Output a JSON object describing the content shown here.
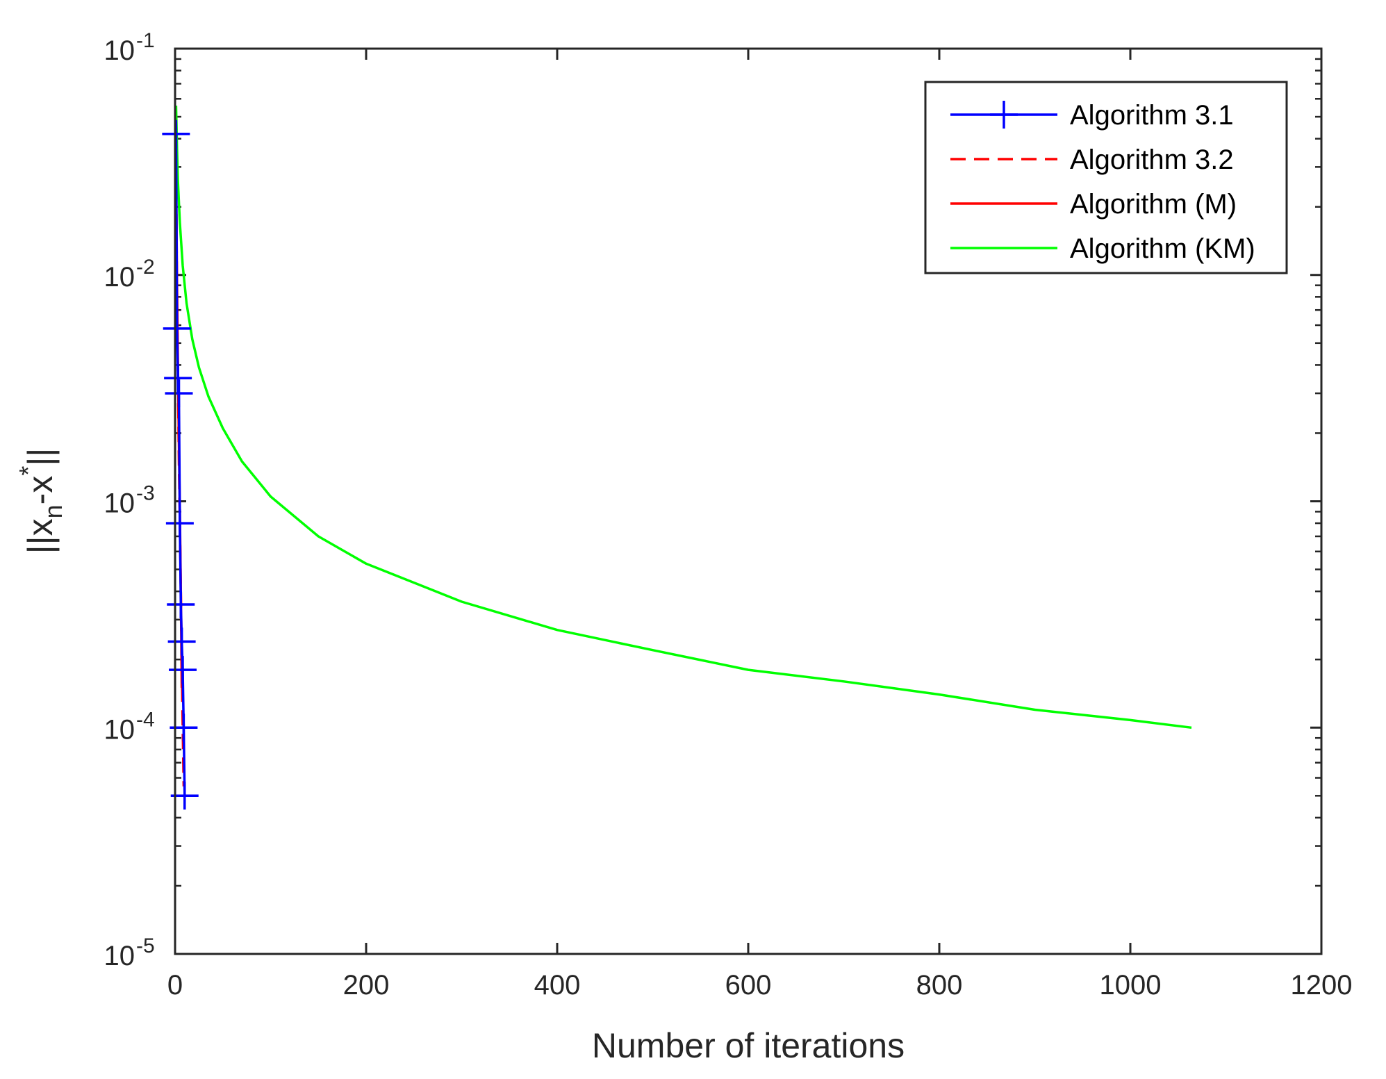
{
  "chart_data": {
    "type": "line",
    "xlabel": "Number of iterations",
    "ylabel_main": "||x",
    "ylabel_sub": "n",
    "ylabel_rest": "-x",
    "ylabel_sup": "*",
    "ylabel_end": "||",
    "xlim": [
      0,
      1200
    ],
    "ylim": [
      1e-05,
      0.1
    ],
    "yscale": "log",
    "grid": false,
    "legend_position": "top-right",
    "x_ticks": [
      {
        "value": 0,
        "label": "0"
      },
      {
        "value": 200,
        "label": "200"
      },
      {
        "value": 400,
        "label": "400"
      },
      {
        "value": 600,
        "label": "600"
      },
      {
        "value": 800,
        "label": "800"
      },
      {
        "value": 1000,
        "label": "1000"
      },
      {
        "value": 1200,
        "label": "1200"
      }
    ],
    "y_ticks": [
      {
        "value": 1e-05,
        "base": "10",
        "exp": "-5"
      },
      {
        "value": 0.0001,
        "base": "10",
        "exp": "-4"
      },
      {
        "value": 0.001,
        "base": "10",
        "exp": "-3"
      },
      {
        "value": 0.01,
        "base": "10",
        "exp": "-2"
      },
      {
        "value": 0.1,
        "base": "10",
        "exp": "-1"
      }
    ],
    "series": [
      {
        "name": "Algorithm 3.1",
        "color": "#0000ff",
        "style": "solid",
        "marker": "plus",
        "x": [
          1,
          2,
          3,
          4,
          5,
          6,
          7,
          8,
          9,
          10
        ],
        "y": [
          0.042,
          0.0058,
          0.0035,
          0.003,
          0.0008,
          0.00035,
          0.00024,
          0.00018,
          0.0001,
          5e-05
        ]
      },
      {
        "name": "Algorithm 3.2",
        "color": "#ff0000",
        "style": "dashed",
        "marker": "none",
        "x": [
          1,
          2,
          3,
          4,
          5,
          6,
          7,
          8,
          9
        ],
        "y": [
          0.03,
          0.008,
          0.0035,
          0.0015,
          0.0008,
          0.0004,
          0.0002,
          0.0001,
          5.5e-05
        ]
      },
      {
        "name": "Algorithm (M)",
        "color": "#ff0000",
        "style": "solid",
        "marker": "none",
        "x": [
          1,
          2,
          3,
          4,
          5,
          6,
          7
        ],
        "y": [
          0.028,
          0.009,
          0.004,
          0.0018,
          0.0009,
          0.0004,
          0.00015
        ]
      },
      {
        "name": "Algorithm (KM)",
        "color": "#00ff00",
        "style": "solid",
        "marker": "none",
        "x": [
          1,
          2,
          3,
          5,
          8,
          12,
          18,
          25,
          35,
          50,
          70,
          100,
          150,
          200,
          300,
          400,
          500,
          600,
          700,
          800,
          900,
          1000,
          1064
        ],
        "y": [
          0.056,
          0.036,
          0.026,
          0.017,
          0.011,
          0.0075,
          0.0052,
          0.0039,
          0.0029,
          0.0021,
          0.0015,
          0.00105,
          0.0007,
          0.00053,
          0.00036,
          0.00027,
          0.00022,
          0.00018,
          0.00016,
          0.00014,
          0.00012,
          0.000108,
          0.0001
        ]
      }
    ]
  }
}
